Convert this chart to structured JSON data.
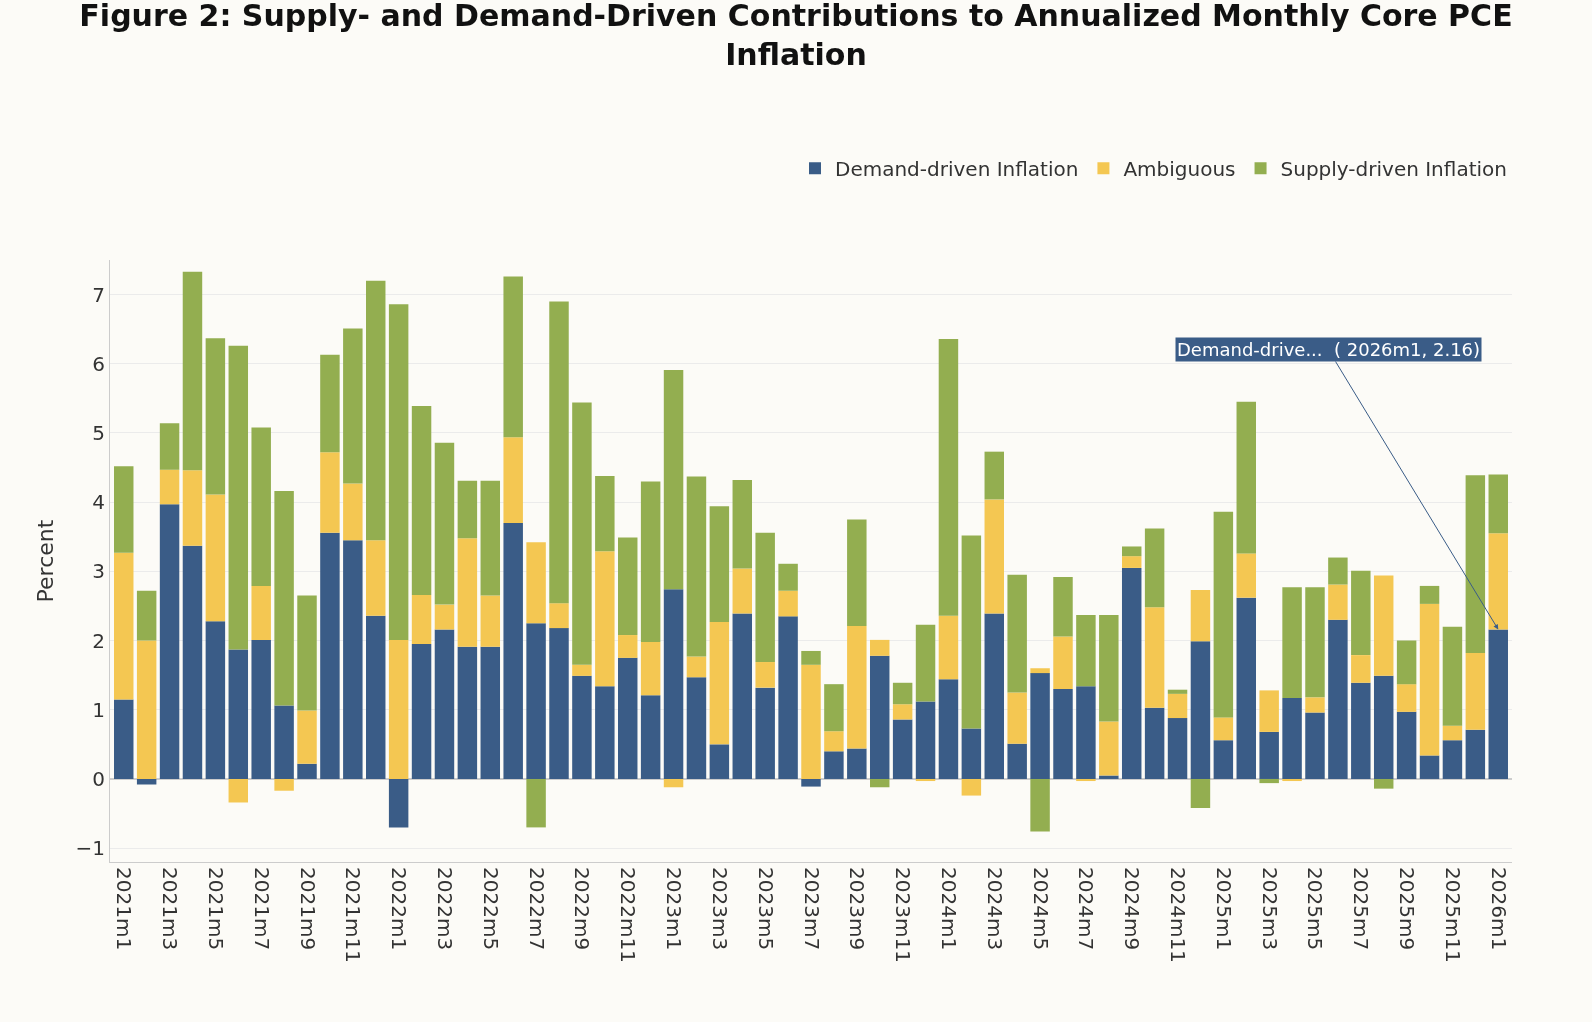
{
  "chart_data": {
    "type": "bar",
    "stacked": true,
    "title": "Figure 2: Supply- and Demand-Driven Contributions to Annualized Monthly Core PCE Inflation",
    "ylabel": "Percent",
    "categories": [
      "2021m1",
      null,
      "2021m3",
      null,
      "2021m5",
      null,
      "2021m7",
      null,
      "2021m9",
      null,
      "2021m11",
      null,
      "2022m1",
      null,
      "2022m3",
      null,
      "2022m5",
      null,
      "2022m7",
      null,
      "2022m9",
      null,
      "2022m11",
      null,
      "2023m1",
      null,
      "2023m3",
      null,
      "2023m5",
      null,
      "2023m7",
      null,
      "2023m9",
      null,
      "2023m11",
      null,
      "2024m1",
      null,
      "2024m3",
      null,
      "2024m5",
      null,
      "2024m7",
      null,
      "2024m9",
      null,
      "2024m11",
      null,
      "2025m1",
      null,
      "2025m3",
      null,
      "2025m5",
      null,
      "2025m7",
      null,
      "2025m9",
      null,
      "2025m11",
      null,
      "2026m1"
    ],
    "series": [
      {
        "name": "Demand-driven Inflation",
        "color": "#3a5c87",
        "values": [
          1.15,
          -0.08,
          3.97,
          3.37,
          2.28,
          1.87,
          2.01,
          1.06,
          0.22,
          3.56,
          3.45,
          2.36,
          -0.7,
          1.95,
          2.16,
          1.91,
          1.91,
          3.7,
          2.25,
          2.18,
          1.49,
          1.34,
          1.75,
          1.21,
          2.74,
          1.47,
          0.5,
          2.39,
          1.32,
          2.35,
          -0.11,
          0.4,
          0.44,
          1.78,
          0.86,
          1.12,
          1.44,
          0.73,
          2.39,
          0.51,
          1.53,
          1.3,
          1.34,
          0.05,
          3.05,
          1.03,
          0.88,
          1.99,
          0.56,
          2.62,
          0.68,
          1.17,
          0.96,
          2.3,
          1.39,
          1.49,
          0.97,
          0.34,
          0.56,
          0.71,
          2.16
        ]
      },
      {
        "name": "Ambiguous",
        "color": "#f4c752",
        "values": [
          2.12,
          2.0,
          0.5,
          1.09,
          1.83,
          -0.34,
          0.78,
          -0.17,
          0.77,
          1.16,
          0.82,
          1.09,
          2.01,
          0.71,
          0.36,
          1.57,
          0.74,
          1.24,
          1.17,
          0.36,
          0.16,
          1.95,
          0.33,
          0.77,
          -0.12,
          0.3,
          1.77,
          0.65,
          0.37,
          0.37,
          1.65,
          0.29,
          1.77,
          0.23,
          0.22,
          -0.03,
          0.92,
          -0.24,
          1.65,
          0.74,
          0.07,
          0.76,
          -0.03,
          0.78,
          0.17,
          1.45,
          0.35,
          0.74,
          0.33,
          0.64,
          0.6,
          -0.03,
          0.22,
          0.51,
          0.4,
          1.45,
          0.4,
          2.19,
          0.21,
          1.11,
          1.39
        ]
      },
      {
        "name": "Supply-driven Inflation",
        "color": "#93ae50",
        "values": [
          1.25,
          0.72,
          0.67,
          2.87,
          2.26,
          4.39,
          2.29,
          3.1,
          1.66,
          1.41,
          2.24,
          3.75,
          4.85,
          2.73,
          2.34,
          0.83,
          1.66,
          2.32,
          -0.7,
          4.36,
          3.79,
          1.09,
          1.41,
          2.32,
          3.17,
          2.6,
          1.67,
          1.28,
          1.87,
          0.39,
          0.2,
          0.68,
          1.54,
          -0.12,
          0.31,
          1.11,
          4.0,
          2.79,
          0.69,
          1.7,
          -0.76,
          0.86,
          1.03,
          1.54,
          0.14,
          1.14,
          0.06,
          -0.42,
          2.97,
          2.19,
          -0.06,
          1.6,
          1.59,
          0.39,
          1.22,
          -0.14,
          0.63,
          0.26,
          1.43,
          2.57,
          0.85
        ]
      }
    ],
    "annotations": [
      {
        "text": "Demand-drive...  ( 2026m1, 2.16)",
        "x": "2026m1",
        "y": 2.16
      }
    ],
    "ylim": [
      -1.2,
      7.5
    ],
    "yticks": [
      -1,
      0,
      1,
      2,
      3,
      4,
      5,
      6,
      7
    ],
    "grid": "y",
    "legend": "top right"
  }
}
